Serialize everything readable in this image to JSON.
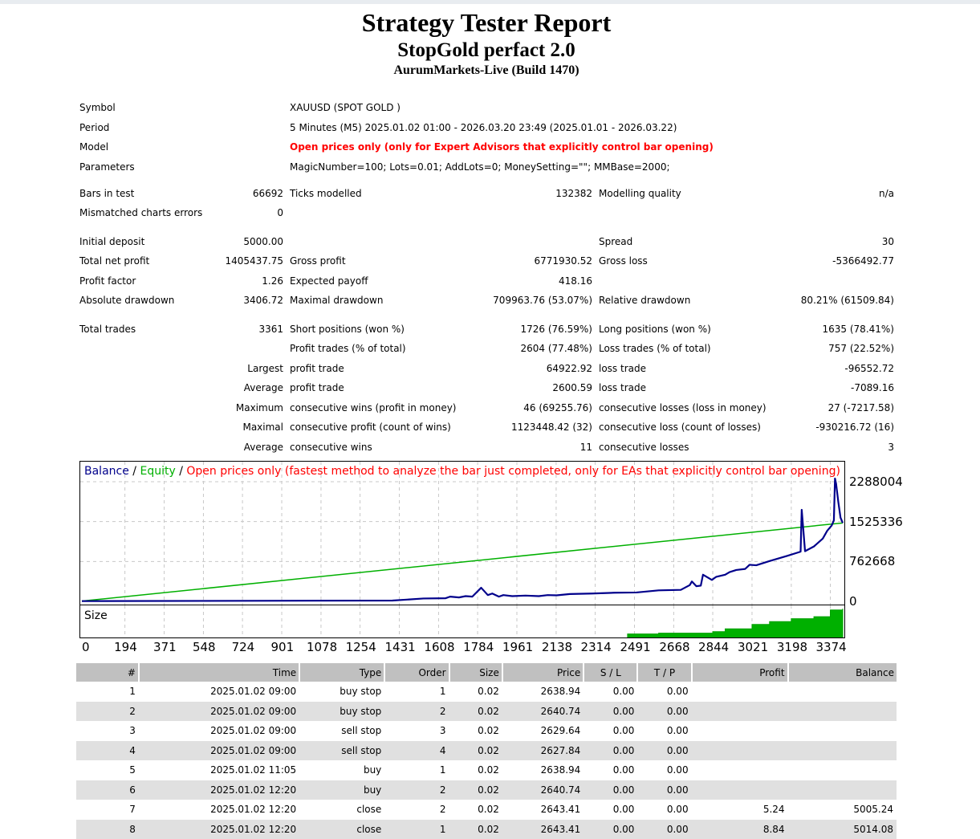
{
  "header": {
    "title": "Strategy Tester Report",
    "ea_name": "StopGold perfact 2.0",
    "server": "AurumMarkets-Live (Build 1470)"
  },
  "settings": {
    "symbol_label": "Symbol",
    "symbol_value": "XAUUSD (SPOT GOLD )",
    "period_label": "Period",
    "period_value": "5 Minutes (M5) 2025.01.02 01:00 - 2026.03.20 23:49 (2025.01.01 - 2026.03.22)",
    "model_label": "Model",
    "model_value": "Open prices only (only for Expert Advisors that explicitly control bar opening)",
    "parameters_label": "Parameters",
    "parameters_value": "MagicNumber=100; Lots=0.01; AddLots=0; MoneySetting=\"\"; MMBase=2000;"
  },
  "modelling": {
    "bars_label": "Bars in test",
    "bars_value": "66692",
    "ticks_label": "Ticks modelled",
    "ticks_value": "132382",
    "quality_label": "Modelling quality",
    "quality_value": "n/a",
    "mismatch_label": "Mismatched charts errors",
    "mismatch_value": "0"
  },
  "results": {
    "initial_deposit_label": "Initial deposit",
    "initial_deposit": "5000.00",
    "spread_label": "Spread",
    "spread": "30",
    "net_profit_label": "Total net profit",
    "net_profit": "1405437.75",
    "gross_profit_label": "Gross profit",
    "gross_profit": "6771930.52",
    "gross_loss_label": "Gross loss",
    "gross_loss": "-5366492.77",
    "profit_factor_label": "Profit factor",
    "profit_factor": "1.26",
    "expected_payoff_label": "Expected payoff",
    "expected_payoff": "418.16",
    "abs_drawdown_label": "Absolute drawdown",
    "abs_drawdown": "3406.72",
    "max_drawdown_label": "Maximal drawdown",
    "max_drawdown": "709963.76 (53.07%)",
    "rel_drawdown_label": "Relative drawdown",
    "rel_drawdown": "80.21% (61509.84)"
  },
  "trades": {
    "total_label": "Total trades",
    "total": "3361",
    "short_label": "Short positions (won %)",
    "short": "1726 (76.59%)",
    "long_label": "Long positions (won %)",
    "long": "1635 (78.41%)",
    "profit_trades_label": "Profit trades (% of total)",
    "profit_trades": "2604 (77.48%)",
    "loss_trades_label": "Loss trades (% of total)",
    "loss_trades": "757 (22.52%)",
    "largest_label": "Largest",
    "largest_profit_label": "profit trade",
    "largest_profit": "64922.92",
    "largest_loss_label": "loss trade",
    "largest_loss": "-96552.72",
    "average_label": "Average",
    "average_profit_label": "profit trade",
    "average_profit": "2600.59",
    "average_loss_label": "loss trade",
    "average_loss": "-7089.16",
    "maximum_label": "Maximum",
    "max_wins_label": "consecutive wins (profit in money)",
    "max_wins": "46 (69255.76)",
    "max_losses_label": "consecutive losses (loss in money)",
    "max_losses": "27 (-7217.58)",
    "maximal_label": "Maximal",
    "maximal_profit_label": "consecutive profit (count of wins)",
    "maximal_profit": "1123448.42 (32)",
    "maximal_loss_label": "consecutive loss (count of losses)",
    "maximal_loss": "-930216.72 (16)",
    "avg_consec_label": "Average",
    "avg_wins_label": "consecutive wins",
    "avg_wins": "11",
    "avg_losses_label": "consecutive losses",
    "avg_losses": "3"
  },
  "chart_legend": {
    "balance": "Balance",
    "sep1": " / ",
    "equity": "Equity",
    "sep2": " / ",
    "model_note": "Open prices only (fastest method to analyze the bar just completed, only for EAs that explicitly control bar opening)",
    "size_label": "Size",
    "balance_color": "#00008b",
    "equity_color": "#00b000",
    "note_color": "#ff0000"
  },
  "chart_data": {
    "type": "line",
    "ylim": [
      0,
      2288004
    ],
    "y_ticks": [
      "2288004",
      "1525336",
      "762668",
      "0"
    ],
    "x_ticks": [
      "0",
      "194",
      "371",
      "548",
      "724",
      "901",
      "1078",
      "1254",
      "1431",
      "1608",
      "1784",
      "1961",
      "2138",
      "2314",
      "2491",
      "2668",
      "2844",
      "3021",
      "3198",
      "3374"
    ],
    "series": [
      {
        "name": "Balance",
        "x": [
          0,
          1400,
          1540,
          1640,
          1660,
          1700,
          1730,
          1760,
          1800,
          1830,
          1850,
          1880,
          1900,
          1940,
          2000,
          2060,
          2100,
          2140,
          2200,
          2300,
          2400,
          2500,
          2600,
          2700,
          2740,
          2750,
          2770,
          2790,
          2800,
          2840,
          2860,
          2900,
          2920,
          2950,
          2990,
          3000,
          3010,
          3040,
          3100,
          3180,
          3240,
          3245,
          3260,
          3300,
          3340,
          3360,
          3380,
          3390,
          3395,
          3400,
          3410,
          3420,
          3430
        ],
        "y": [
          5000,
          15000,
          55000,
          60000,
          90000,
          75000,
          100000,
          90000,
          260000,
          120000,
          150000,
          90000,
          120000,
          100000,
          110000,
          100000,
          120000,
          115000,
          140000,
          150000,
          165000,
          170000,
          210000,
          220000,
          310000,
          380000,
          290000,
          300000,
          510000,
          410000,
          470000,
          510000,
          560000,
          600000,
          620000,
          660000,
          700000,
          690000,
          770000,
          870000,
          950000,
          1750000,
          960000,
          1050000,
          1200000,
          1350000,
          1450000,
          1550000,
          2350000,
          2250000,
          1900000,
          1600000,
          1500000
        ]
      },
      {
        "name": "Equity",
        "x": [
          0,
          3430
        ],
        "y": [
          5000,
          1500000
        ]
      }
    ],
    "size_series": {
      "name": "Size",
      "x": [
        2460,
        2600,
        2844,
        2900,
        3021,
        3100,
        3198,
        3300,
        3374,
        3430
      ],
      "y": [
        0.12,
        0.15,
        0.2,
        0.3,
        0.45,
        0.55,
        0.65,
        0.72,
        0.95,
        1.0
      ]
    }
  },
  "deals": {
    "headers": [
      "#",
      "Time",
      "Type",
      "Order",
      "Size",
      "Price",
      "S / L",
      "T / P",
      "Profit",
      "Balance"
    ],
    "rows": [
      [
        "1",
        "2025.01.02 09:00",
        "buy stop",
        "1",
        "0.02",
        "2638.94",
        "0.00",
        "0.00",
        "",
        ""
      ],
      [
        "2",
        "2025.01.02 09:00",
        "buy stop",
        "2",
        "0.02",
        "2640.74",
        "0.00",
        "0.00",
        "",
        ""
      ],
      [
        "3",
        "2025.01.02 09:00",
        "sell stop",
        "3",
        "0.02",
        "2629.64",
        "0.00",
        "0.00",
        "",
        ""
      ],
      [
        "4",
        "2025.01.02 09:00",
        "sell stop",
        "4",
        "0.02",
        "2627.84",
        "0.00",
        "0.00",
        "",
        ""
      ],
      [
        "5",
        "2025.01.02 11:05",
        "buy",
        "1",
        "0.02",
        "2638.94",
        "0.00",
        "0.00",
        "",
        ""
      ],
      [
        "6",
        "2025.01.02 12:20",
        "buy",
        "2",
        "0.02",
        "2640.74",
        "0.00",
        "0.00",
        "",
        ""
      ],
      [
        "7",
        "2025.01.02 12:20",
        "close",
        "2",
        "0.02",
        "2643.41",
        "0.00",
        "0.00",
        "5.24",
        "5005.24"
      ],
      [
        "8",
        "2025.01.02 12:20",
        "close",
        "1",
        "0.02",
        "2643.41",
        "0.00",
        "0.00",
        "8.84",
        "5014.08"
      ]
    ]
  }
}
